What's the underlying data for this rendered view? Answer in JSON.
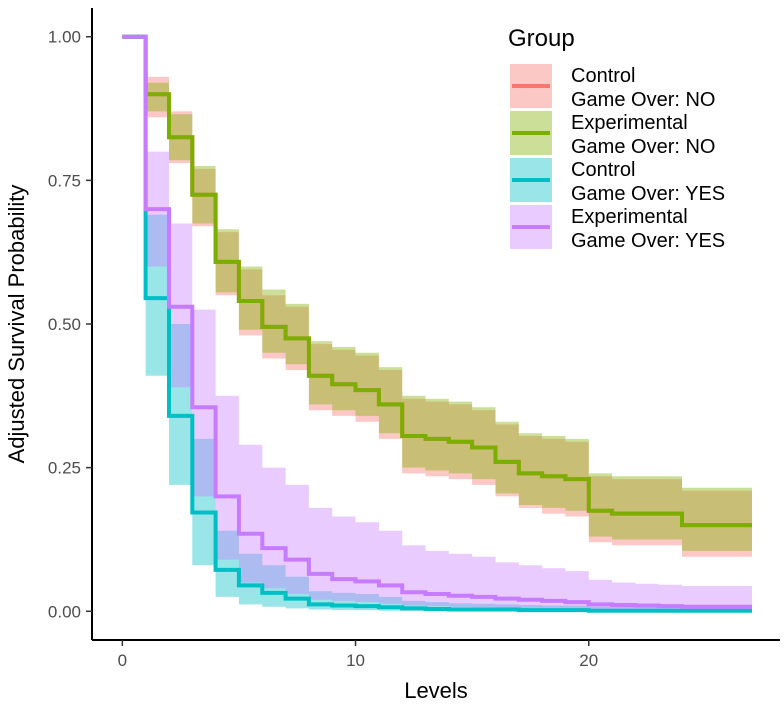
{
  "chart_data": {
    "type": "line",
    "step": true,
    "xlabel": "Levels",
    "ylabel": "Adjusted Survival Probability",
    "xlim": [
      -1.3,
      28.2
    ],
    "ylim": [
      -0.05,
      1.05
    ],
    "xticks": [
      0,
      10,
      20
    ],
    "xtick_labels": [
      "0",
      "10",
      "20"
    ],
    "yticks": [
      0,
      0.25,
      0.5,
      0.75,
      1.0
    ],
    "ytick_labels": [
      "0.00",
      "0.25",
      "0.50",
      "0.75",
      "1.00"
    ],
    "grid": false,
    "legend": {
      "title": "Group",
      "placement": "top-right"
    },
    "x": [
      0,
      1,
      2,
      3,
      4,
      5,
      6,
      7,
      8,
      9,
      10,
      11,
      12,
      13,
      14,
      15,
      16,
      17,
      18,
      19,
      20,
      21,
      22,
      23,
      24,
      25,
      26,
      27
    ],
    "series": [
      {
        "name_lines": [
          "Control",
          "Game Over: NO"
        ],
        "color": "#F8766D",
        "band_color": "#F8766D",
        "y": [
          1.0,
          0.9,
          0.825,
          0.725,
          0.608,
          0.54,
          0.495,
          0.475,
          0.41,
          0.395,
          0.385,
          0.36,
          0.305,
          0.3,
          0.295,
          0.285,
          0.26,
          0.24,
          0.235,
          0.23,
          0.175,
          0.17,
          0.17,
          0.17,
          0.15,
          0.15,
          0.15,
          0.15
        ],
        "lower": [
          1.0,
          0.86,
          0.78,
          0.67,
          0.55,
          0.48,
          0.44,
          0.42,
          0.35,
          0.34,
          0.33,
          0.3,
          0.24,
          0.235,
          0.23,
          0.22,
          0.2,
          0.18,
          0.17,
          0.165,
          0.12,
          0.115,
          0.115,
          0.115,
          0.095,
          0.095,
          0.095,
          0.095
        ],
        "upper": [
          1.0,
          0.93,
          0.87,
          0.77,
          0.66,
          0.595,
          0.55,
          0.53,
          0.465,
          0.455,
          0.445,
          0.42,
          0.37,
          0.365,
          0.36,
          0.35,
          0.325,
          0.305,
          0.3,
          0.295,
          0.235,
          0.23,
          0.23,
          0.23,
          0.21,
          0.21,
          0.21,
          0.21
        ]
      },
      {
        "name_lines": [
          "Experimental",
          "Game Over: NO"
        ],
        "color": "#7CAE00",
        "band_color": "#7CAE00",
        "y": [
          1.0,
          0.9,
          0.825,
          0.725,
          0.608,
          0.54,
          0.495,
          0.475,
          0.41,
          0.395,
          0.385,
          0.36,
          0.305,
          0.3,
          0.295,
          0.285,
          0.26,
          0.24,
          0.235,
          0.23,
          0.175,
          0.17,
          0.17,
          0.17,
          0.15,
          0.15,
          0.15,
          0.15
        ],
        "lower": [
          1.0,
          0.87,
          0.785,
          0.675,
          0.555,
          0.49,
          0.45,
          0.43,
          0.36,
          0.35,
          0.34,
          0.31,
          0.25,
          0.245,
          0.24,
          0.23,
          0.205,
          0.185,
          0.18,
          0.175,
          0.13,
          0.125,
          0.125,
          0.125,
          0.105,
          0.105,
          0.105,
          0.105
        ],
        "upper": [
          1.0,
          0.92,
          0.865,
          0.775,
          0.665,
          0.6,
          0.56,
          0.535,
          0.47,
          0.46,
          0.45,
          0.425,
          0.375,
          0.37,
          0.365,
          0.355,
          0.33,
          0.31,
          0.305,
          0.3,
          0.24,
          0.235,
          0.235,
          0.235,
          0.215,
          0.215,
          0.215,
          0.215
        ]
      },
      {
        "name_lines": [
          "Control",
          "Game Over: YES"
        ],
        "color": "#00BFC4",
        "band_color": "#00BFC4",
        "y": [
          1.0,
          0.545,
          0.34,
          0.172,
          0.072,
          0.045,
          0.032,
          0.022,
          0.012,
          0.01,
          0.009,
          0.007,
          0.005,
          0.004,
          0.003,
          0.003,
          0.003,
          0.002,
          0.002,
          0.002,
          0.001,
          0.001,
          0.001,
          0.001,
          0.001,
          0.001,
          0.001,
          0.001
        ],
        "lower": [
          1.0,
          0.41,
          0.22,
          0.08,
          0.025,
          0.012,
          0.008,
          0.005,
          0.003,
          0.002,
          0.002,
          0.001,
          0.001,
          0.001,
          0.0,
          0.0,
          0.0,
          0.0,
          0.0,
          0.0,
          0.0,
          0.0,
          0.0,
          0.0,
          0.0,
          0.0,
          0.0,
          0.0
        ],
        "upper": [
          1.0,
          0.69,
          0.5,
          0.3,
          0.14,
          0.1,
          0.08,
          0.06,
          0.035,
          0.032,
          0.03,
          0.025,
          0.018,
          0.016,
          0.014,
          0.013,
          0.012,
          0.011,
          0.01,
          0.01,
          0.008,
          0.008,
          0.008,
          0.008,
          0.007,
          0.007,
          0.007,
          0.007
        ]
      },
      {
        "name_lines": [
          "Experimental",
          "Game Over: YES"
        ],
        "color": "#C77CFF",
        "band_color": "#C77CFF",
        "y": [
          1.0,
          0.7,
          0.53,
          0.355,
          0.2,
          0.135,
          0.11,
          0.09,
          0.065,
          0.056,
          0.052,
          0.045,
          0.033,
          0.03,
          0.027,
          0.025,
          0.022,
          0.02,
          0.018,
          0.016,
          0.012,
          0.011,
          0.01,
          0.009,
          0.008,
          0.008,
          0.008,
          0.008
        ],
        "lower": [
          1.0,
          0.6,
          0.39,
          0.2,
          0.09,
          0.05,
          0.04,
          0.03,
          0.02,
          0.018,
          0.016,
          0.013,
          0.01,
          0.009,
          0.008,
          0.007,
          0.006,
          0.005,
          0.005,
          0.004,
          0.003,
          0.003,
          0.002,
          0.002,
          0.002,
          0.002,
          0.002,
          0.002
        ],
        "upper": [
          1.0,
          0.8,
          0.675,
          0.525,
          0.375,
          0.29,
          0.25,
          0.22,
          0.18,
          0.165,
          0.155,
          0.14,
          0.115,
          0.105,
          0.1,
          0.095,
          0.085,
          0.08,
          0.075,
          0.07,
          0.055,
          0.05,
          0.048,
          0.046,
          0.044,
          0.044,
          0.044,
          0.044
        ]
      }
    ]
  }
}
